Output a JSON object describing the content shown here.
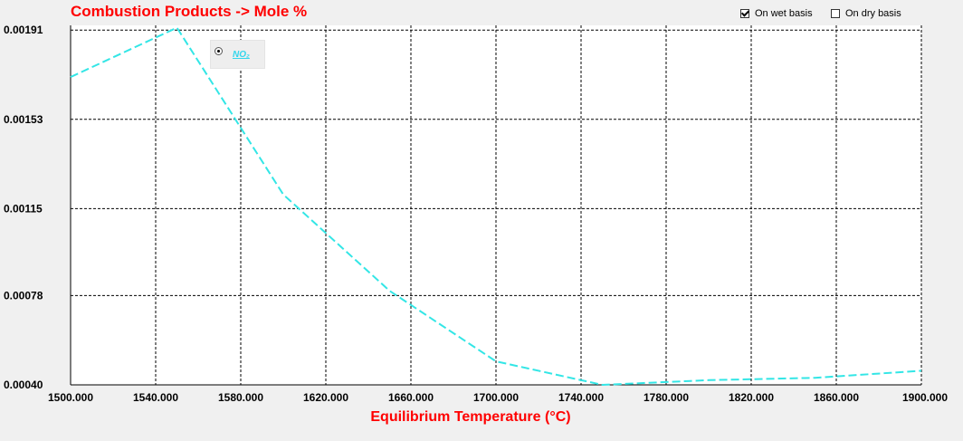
{
  "chart_data": {
    "type": "line",
    "title": "Combustion Products -> Mole %",
    "xlabel": "Equilibrium Temperature (°C)",
    "ylabel": "",
    "xlim": [
      1500,
      1900
    ],
    "ylim": [
      0.0004,
      0.00193
    ],
    "x_ticks": [
      "1500.000",
      "1540.000",
      "1580.000",
      "1620.000",
      "1660.000",
      "1700.000",
      "1740.000",
      "1780.000",
      "1820.000",
      "1860.000",
      "1900.000"
    ],
    "y_ticks": [
      "0.00040",
      "0.00078",
      "0.00115",
      "0.00153",
      "0.00191"
    ],
    "y_tick_values": [
      0.0004,
      0.00078,
      0.00115,
      0.00153,
      0.00191
    ],
    "grid": true,
    "legend_placement": "top-left",
    "series": [
      {
        "name": "NO₂",
        "color": "#33e6e6",
        "style": "dashed",
        "points": [
          [
            1500,
            0.00171
          ],
          [
            1550,
            0.00192
          ],
          [
            1600,
            0.00121
          ],
          [
            1650,
            0.0008
          ],
          [
            1700,
            0.0005
          ],
          [
            1750,
            0.0004
          ],
          [
            1800,
            0.00042
          ],
          [
            1850,
            0.00043
          ],
          [
            1900,
            0.00046
          ]
        ]
      }
    ]
  },
  "basis_options": {
    "wet_label": "On wet basis",
    "wet_checked": true,
    "dry_label": "On dry basis",
    "dry_checked": false
  }
}
